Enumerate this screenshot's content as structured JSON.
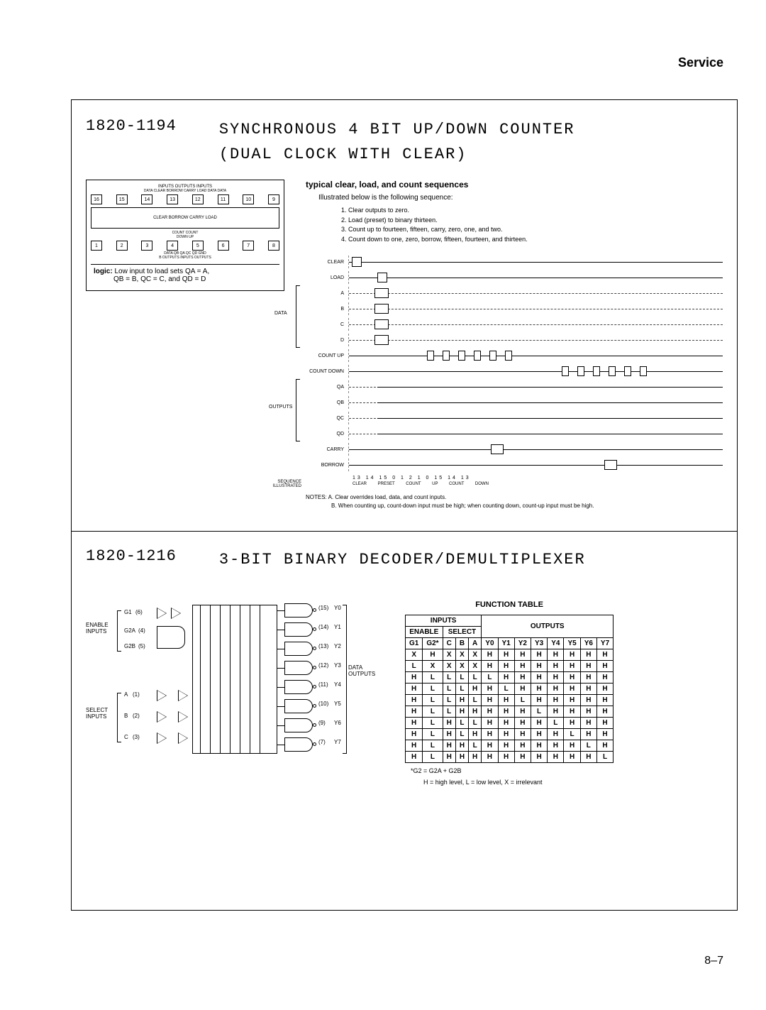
{
  "header": {
    "service": "Service"
  },
  "section1": {
    "part_no": "1820-1194",
    "title_l1": "SYNCHRONOUS 4 BIT UP/DOWN COUNTER",
    "title_l2": "(DUAL CLOCK WITH CLEAR)",
    "chip": {
      "top_labels": "INPUTS    OUTPUTS    INPUTS",
      "top_sub": "DATA CLEAR BORROW CARRY LOAD DATA DATA",
      "top_pins": [
        "16",
        "15",
        "14",
        "13",
        "12",
        "11",
        "10",
        "9"
      ],
      "inner": "CLEAR BORROW CARRY LOAD",
      "bot_sub": "COUNT COUNT",
      "bot_sub2": "DOWN   UP",
      "bot_pins": [
        "1",
        "2",
        "3",
        "4",
        "5",
        "6",
        "7",
        "8"
      ],
      "bot_labels": "DATA  QB  QA        QC  QD  GND",
      "bot_labels2": "B    OUTPUTS   INPUTS   OUTPUTS",
      "logic_label": "logic:",
      "logic_text1": "Low input to load sets QA = A,",
      "logic_text2": "QB = B, QC = C, and QD = D"
    },
    "seq": {
      "title": "typical clear, load, and count sequences",
      "sub": "Illustrated below is the following sequence:",
      "items": [
        "1. Clear outputs to zero.",
        "2. Load (preset) to binary thirteen.",
        "3. Count up to fourteen, fifteen, carry, zero, one, and two.",
        "4. Count down to one, zero, borrow, fifteen, fourteen, and thirteen."
      ],
      "rows": [
        "CLEAR",
        "LOAD",
        "A",
        "B",
        "C",
        "D",
        "COUNT UP",
        "COUNT DOWN",
        "QA",
        "QB",
        "QC",
        "QD",
        "CARRY",
        "BORROW"
      ],
      "data_brace": "DATA",
      "out_brace": "OUTPUTS",
      "seq_lbl": "SEQUENCE ILLUSTRATED",
      "bottom_nums": "13   14   15   0   1   2      1   0   15   14   13",
      "bottom_arrows": "CLEAR   PRESET         COUNT UP              COUNT DOWN"
    },
    "notes": {
      "lead": "NOTES:",
      "a": "A. Clear overrides load, data, and count inputs.",
      "b": "B. When counting up, count-down input must be high; when counting down, count-up input must be high."
    }
  },
  "section2": {
    "part_no": "1820-1216",
    "title": "3-BIT BINARY DECODER/DEMULTIPLEXER",
    "diagram": {
      "enable_lbl": "ENABLE INPUTS",
      "select_lbl": "SELECT INPUTS",
      "g1": "G1",
      "g2a": "G2A",
      "g2b": "G2B",
      "a": "A",
      "b": "B",
      "c": "C",
      "g1_pin": "(6)",
      "g2a_pin": "(4)",
      "g2b_pin": "(5)",
      "a_pin": "(1)",
      "b_pin": "(2)",
      "c_pin": "(3)",
      "outs": [
        {
          "pin": "(15)",
          "name": "Y0"
        },
        {
          "pin": "(14)",
          "name": "Y1"
        },
        {
          "pin": "(13)",
          "name": "Y2"
        },
        {
          "pin": "(12)",
          "name": "Y3"
        },
        {
          "pin": "(11)",
          "name": "Y4"
        },
        {
          "pin": "(10)",
          "name": "Y5"
        },
        {
          "pin": "(9)",
          "name": "Y6"
        },
        {
          "pin": "(7)",
          "name": "Y7"
        }
      ],
      "data_out_lbl": "DATA OUTPUTS"
    },
    "func": {
      "title": "FUNCTION TABLE",
      "head_inputs": "INPUTS",
      "head_outputs": "OUTPUTS",
      "head_enable": "ENABLE",
      "head_select": "SELECT",
      "cols": [
        "G1",
        "G2*",
        "C",
        "B",
        "A",
        "Y0",
        "Y1",
        "Y2",
        "Y3",
        "Y4",
        "Y5",
        "Y6",
        "Y7"
      ],
      "rows": [
        [
          "X",
          "H",
          "X",
          "X",
          "X",
          "H",
          "H",
          "H",
          "H",
          "H",
          "H",
          "H",
          "H"
        ],
        [
          "L",
          "X",
          "X",
          "X",
          "X",
          "H",
          "H",
          "H",
          "H",
          "H",
          "H",
          "H",
          "H"
        ],
        [
          "H",
          "L",
          "L",
          "L",
          "L",
          "L",
          "H",
          "H",
          "H",
          "H",
          "H",
          "H",
          "H"
        ],
        [
          "H",
          "L",
          "L",
          "L",
          "H",
          "H",
          "L",
          "H",
          "H",
          "H",
          "H",
          "H",
          "H"
        ],
        [
          "H",
          "L",
          "L",
          "H",
          "L",
          "H",
          "H",
          "L",
          "H",
          "H",
          "H",
          "H",
          "H"
        ],
        [
          "H",
          "L",
          "L",
          "H",
          "H",
          "H",
          "H",
          "H",
          "L",
          "H",
          "H",
          "H",
          "H"
        ],
        [
          "H",
          "L",
          "H",
          "L",
          "L",
          "H",
          "H",
          "H",
          "H",
          "L",
          "H",
          "H",
          "H"
        ],
        [
          "H",
          "L",
          "H",
          "L",
          "H",
          "H",
          "H",
          "H",
          "H",
          "H",
          "L",
          "H",
          "H"
        ],
        [
          "H",
          "L",
          "H",
          "H",
          "L",
          "H",
          "H",
          "H",
          "H",
          "H",
          "H",
          "L",
          "H"
        ],
        [
          "H",
          "L",
          "H",
          "H",
          "H",
          "H",
          "H",
          "H",
          "H",
          "H",
          "H",
          "H",
          "L"
        ]
      ],
      "foot1": "*G2 = G2A + G2B",
      "foot2": "H = high level, L = low level, X = irrelevant"
    }
  },
  "page_num": "8–7"
}
